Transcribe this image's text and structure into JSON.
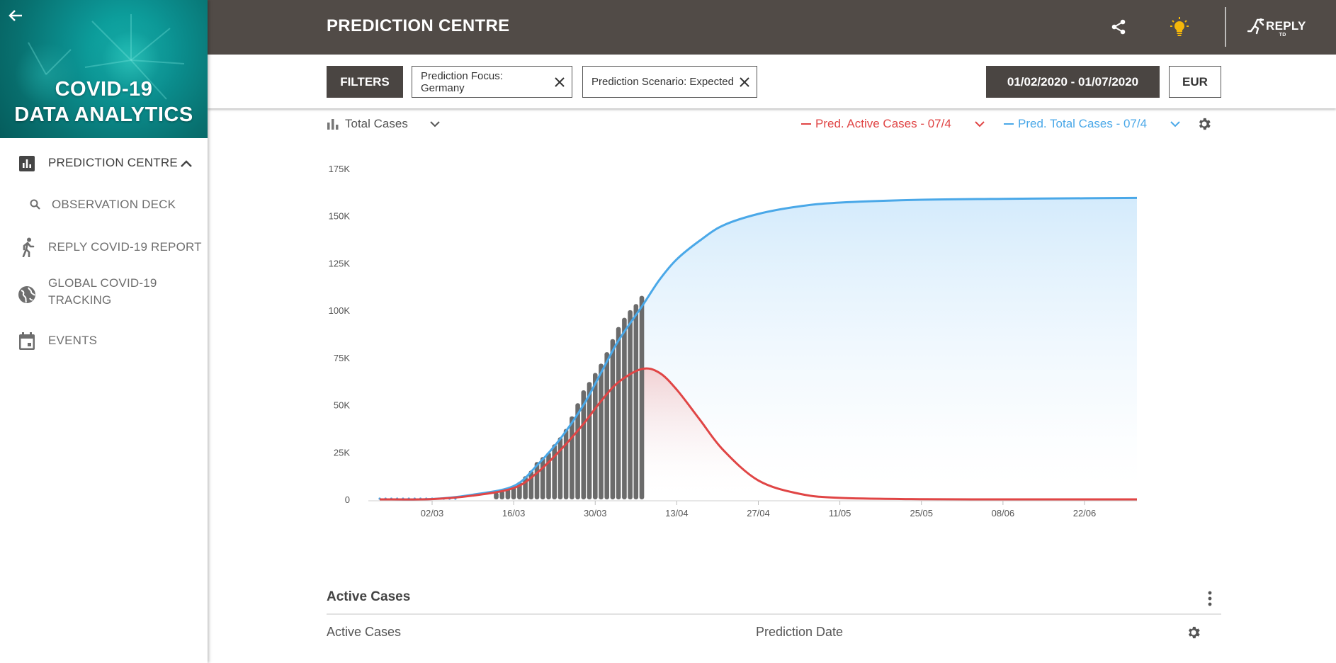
{
  "brand": {
    "line1": "COVID-19",
    "line2": "DATA ANALYTICS"
  },
  "sidebar": {
    "items": [
      {
        "label": "PREDICTION CENTRE",
        "icon": "bar-chart-icon"
      },
      {
        "label": "OBSERVATION DECK",
        "icon": "search-icon"
      },
      {
        "label": "REPLY COVID-19 REPORT",
        "icon": "runner-icon"
      },
      {
        "label_line1": "GLOBAL COVID-19",
        "label_line2": "TRACKING",
        "icon": "globe-icon"
      },
      {
        "label": "EVENTS",
        "icon": "calendar-icon"
      }
    ]
  },
  "header": {
    "title": "PREDICTION CENTRE",
    "logo": "REPLY",
    "logo_sub": "TD"
  },
  "filterbar": {
    "filters_label": "FILTERS",
    "chips": [
      "Prediction Focus: Germany",
      "Prediction Scenario: Expected"
    ],
    "date_range": "01/02/2020 - 01/07/2020",
    "currency": "EUR"
  },
  "chart_controls": {
    "type_label": "Total Cases",
    "legend": [
      {
        "label": "Pred. Active Cases - 07/4",
        "color": "#e04545"
      },
      {
        "label": "Pred. Total Cases - 07/4",
        "color": "#4aa8e8"
      }
    ]
  },
  "chart_data": {
    "type": "line",
    "x_type": "date",
    "x_range": [
      "2020-02-22",
      "2020-07-01"
    ],
    "y_range": [
      0,
      175000
    ],
    "y_ticks": [
      "0",
      "25K",
      "50K",
      "75K",
      "100K",
      "125K",
      "150K",
      "175K"
    ],
    "x_ticks": [
      "02/03",
      "16/03",
      "30/03",
      "13/04",
      "27/04",
      "11/05",
      "25/05",
      "08/06",
      "22/06"
    ],
    "x_tick_dates": [
      "2020-03-02",
      "2020-03-16",
      "2020-03-30",
      "2020-04-13",
      "2020-04-27",
      "2020-05-11",
      "2020-05-25",
      "2020-06-08",
      "2020-06-22"
    ],
    "series": [
      {
        "name": "Pred. Total Cases - 07/4",
        "color": "#4aa8e8",
        "x": [
          "2020-02-22",
          "2020-03-02",
          "2020-03-09",
          "2020-03-16",
          "2020-03-20",
          "2020-03-24",
          "2020-03-28",
          "2020-03-31",
          "2020-04-03",
          "2020-04-07",
          "2020-04-10",
          "2020-04-13",
          "2020-04-17",
          "2020-04-21",
          "2020-04-27",
          "2020-05-04",
          "2020-05-11",
          "2020-05-25",
          "2020-06-08",
          "2020-06-22",
          "2020-07-01"
        ],
        "y": [
          0,
          200,
          2500,
          7000,
          18000,
          32000,
          50000,
          67000,
          84000,
          102000,
          116000,
          127000,
          137000,
          145000,
          151000,
          155000,
          157000,
          158500,
          159000,
          159300,
          159500
        ]
      },
      {
        "name": "Pred. Active Cases - 07/4",
        "color": "#e04545",
        "x": [
          "2020-02-22",
          "2020-03-02",
          "2020-03-09",
          "2020-03-16",
          "2020-03-20",
          "2020-03-24",
          "2020-03-28",
          "2020-03-31",
          "2020-04-03",
          "2020-04-07",
          "2020-04-10",
          "2020-04-13",
          "2020-04-17",
          "2020-04-21",
          "2020-04-27",
          "2020-05-04",
          "2020-05-11",
          "2020-05-25",
          "2020-06-08",
          "2020-06-22",
          "2020-07-01"
        ],
        "y": [
          0,
          150,
          2000,
          6000,
          14000,
          26000,
          40000,
          52000,
          62000,
          69000,
          67000,
          58000,
          42000,
          26000,
          10000,
          3000,
          800,
          100,
          0,
          0,
          0
        ]
      }
    ],
    "bars": {
      "name": "Total Cases",
      "color": "#6b6b6b",
      "x": [
        "2020-03-13",
        "2020-03-14",
        "2020-03-15",
        "2020-03-16",
        "2020-03-17",
        "2020-03-18",
        "2020-03-19",
        "2020-03-20",
        "2020-03-21",
        "2020-03-22",
        "2020-03-23",
        "2020-03-24",
        "2020-03-25",
        "2020-03-26",
        "2020-03-27",
        "2020-03-28",
        "2020-03-29",
        "2020-03-30",
        "2020-03-31",
        "2020-04-01",
        "2020-04-02",
        "2020-04-03",
        "2020-04-04",
        "2020-04-05",
        "2020-04-06",
        "2020-04-07"
      ],
      "y": [
        3700,
        4600,
        5800,
        7300,
        9300,
        12300,
        15300,
        19800,
        22400,
        24900,
        29100,
        32900,
        37300,
        43900,
        50900,
        57700,
        62100,
        66900,
        71800,
        77900,
        84800,
        91200,
        96100,
        100100,
        103300,
        107700
      ]
    }
  },
  "table": {
    "title": "Active Cases",
    "columns": [
      "Active Cases",
      "Prediction Date"
    ]
  }
}
